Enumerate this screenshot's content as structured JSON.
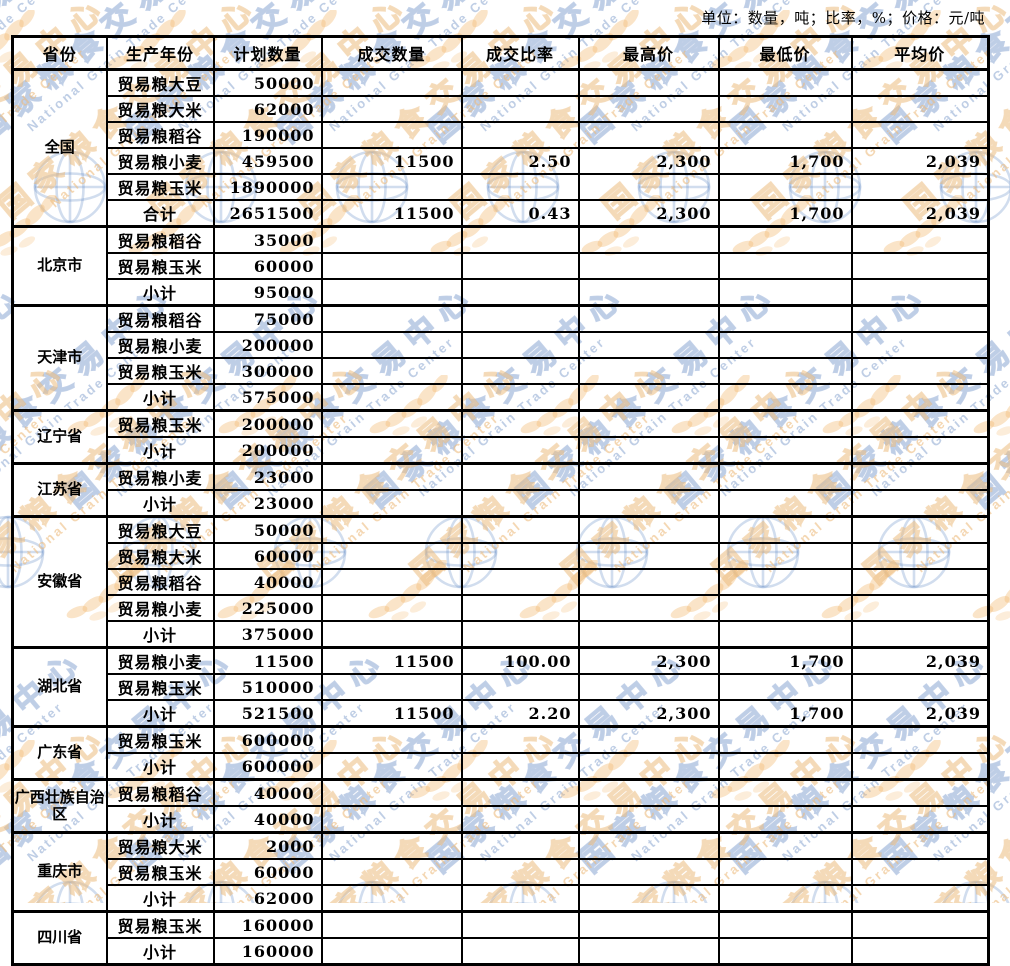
{
  "unit_note": "单位：数量，吨；比率，%；价格：元/吨",
  "watermark": {
    "cn_text": "国家粮食交易中心",
    "en_text": "National Grain Trade Center",
    "blue_color": "#7d9bcd",
    "orange_color": "#e9b26e",
    "globe_icon": "globe-with-meridians",
    "leaf_icon": "wheat-ear"
  },
  "table": {
    "headers": [
      "省份",
      "生产年份",
      "计划数量",
      "成交数量",
      "成交比率",
      "最高价",
      "最低价",
      "平均价"
    ],
    "groups": [
      {
        "province": "全国",
        "rows": [
          [
            "贸易粮大豆",
            "50000",
            "",
            "",
            "",
            "",
            ""
          ],
          [
            "贸易粮大米",
            "62000",
            "",
            "",
            "",
            "",
            ""
          ],
          [
            "贸易粮稻谷",
            "190000",
            "",
            "",
            "",
            "",
            ""
          ],
          [
            "贸易粮小麦",
            "459500",
            "11500",
            "2.50",
            "2,300",
            "1,700",
            "2,039"
          ],
          [
            "贸易粮玉米",
            "1890000",
            "",
            "",
            "",
            "",
            ""
          ],
          [
            "合计",
            "2651500",
            "11500",
            "0.43",
            "2,300",
            "1,700",
            "2,039"
          ]
        ]
      },
      {
        "province": "北京市",
        "rows": [
          [
            "贸易粮稻谷",
            "35000",
            "",
            "",
            "",
            "",
            ""
          ],
          [
            "贸易粮玉米",
            "60000",
            "",
            "",
            "",
            "",
            ""
          ],
          [
            "小计",
            "95000",
            "",
            "",
            "",
            "",
            ""
          ]
        ]
      },
      {
        "province": "天津市",
        "rows": [
          [
            "贸易粮稻谷",
            "75000",
            "",
            "",
            "",
            "",
            ""
          ],
          [
            "贸易粮小麦",
            "200000",
            "",
            "",
            "",
            "",
            ""
          ],
          [
            "贸易粮玉米",
            "300000",
            "",
            "",
            "",
            "",
            ""
          ],
          [
            "小计",
            "575000",
            "",
            "",
            "",
            "",
            ""
          ]
        ]
      },
      {
        "province": "辽宁省",
        "rows": [
          [
            "贸易粮玉米",
            "200000",
            "",
            "",
            "",
            "",
            ""
          ],
          [
            "小计",
            "200000",
            "",
            "",
            "",
            "",
            ""
          ]
        ]
      },
      {
        "province": "江苏省",
        "rows": [
          [
            "贸易粮小麦",
            "23000",
            "",
            "",
            "",
            "",
            ""
          ],
          [
            "小计",
            "23000",
            "",
            "",
            "",
            "",
            ""
          ]
        ]
      },
      {
        "province": "安徽省",
        "rows": [
          [
            "贸易粮大豆",
            "50000",
            "",
            "",
            "",
            "",
            ""
          ],
          [
            "贸易粮大米",
            "60000",
            "",
            "",
            "",
            "",
            ""
          ],
          [
            "贸易粮稻谷",
            "40000",
            "",
            "",
            "",
            "",
            ""
          ],
          [
            "贸易粮小麦",
            "225000",
            "",
            "",
            "",
            "",
            ""
          ],
          [
            "小计",
            "375000",
            "",
            "",
            "",
            "",
            ""
          ]
        ]
      },
      {
        "province": "湖北省",
        "rows": [
          [
            "贸易粮小麦",
            "11500",
            "11500",
            "100.00",
            "2,300",
            "1,700",
            "2,039"
          ],
          [
            "贸易粮玉米",
            "510000",
            "",
            "",
            "",
            "",
            ""
          ],
          [
            "小计",
            "521500",
            "11500",
            "2.20",
            "2,300",
            "1,700",
            "2,039"
          ]
        ]
      },
      {
        "province": "广东省",
        "rows": [
          [
            "贸易粮玉米",
            "600000",
            "",
            "",
            "",
            "",
            ""
          ],
          [
            "小计",
            "600000",
            "",
            "",
            "",
            "",
            ""
          ]
        ]
      },
      {
        "province": "广西壮族自治区",
        "rows": [
          [
            "贸易粮稻谷",
            "40000",
            "",
            "",
            "",
            "",
            ""
          ],
          [
            "小计",
            "40000",
            "",
            "",
            "",
            "",
            ""
          ]
        ]
      },
      {
        "province": "重庆市",
        "rows": [
          [
            "贸易粮大米",
            "2000",
            "",
            "",
            "",
            "",
            ""
          ],
          [
            "贸易粮玉米",
            "60000",
            "",
            "",
            "",
            "",
            ""
          ],
          [
            "小计",
            "62000",
            "",
            "",
            "",
            "",
            ""
          ]
        ]
      },
      {
        "province": "四川省",
        "rows": [
          [
            "贸易粮玉米",
            "160000",
            "",
            "",
            "",
            "",
            ""
          ],
          [
            "小计",
            "160000",
            "",
            "",
            "",
            "",
            ""
          ]
        ]
      }
    ]
  }
}
